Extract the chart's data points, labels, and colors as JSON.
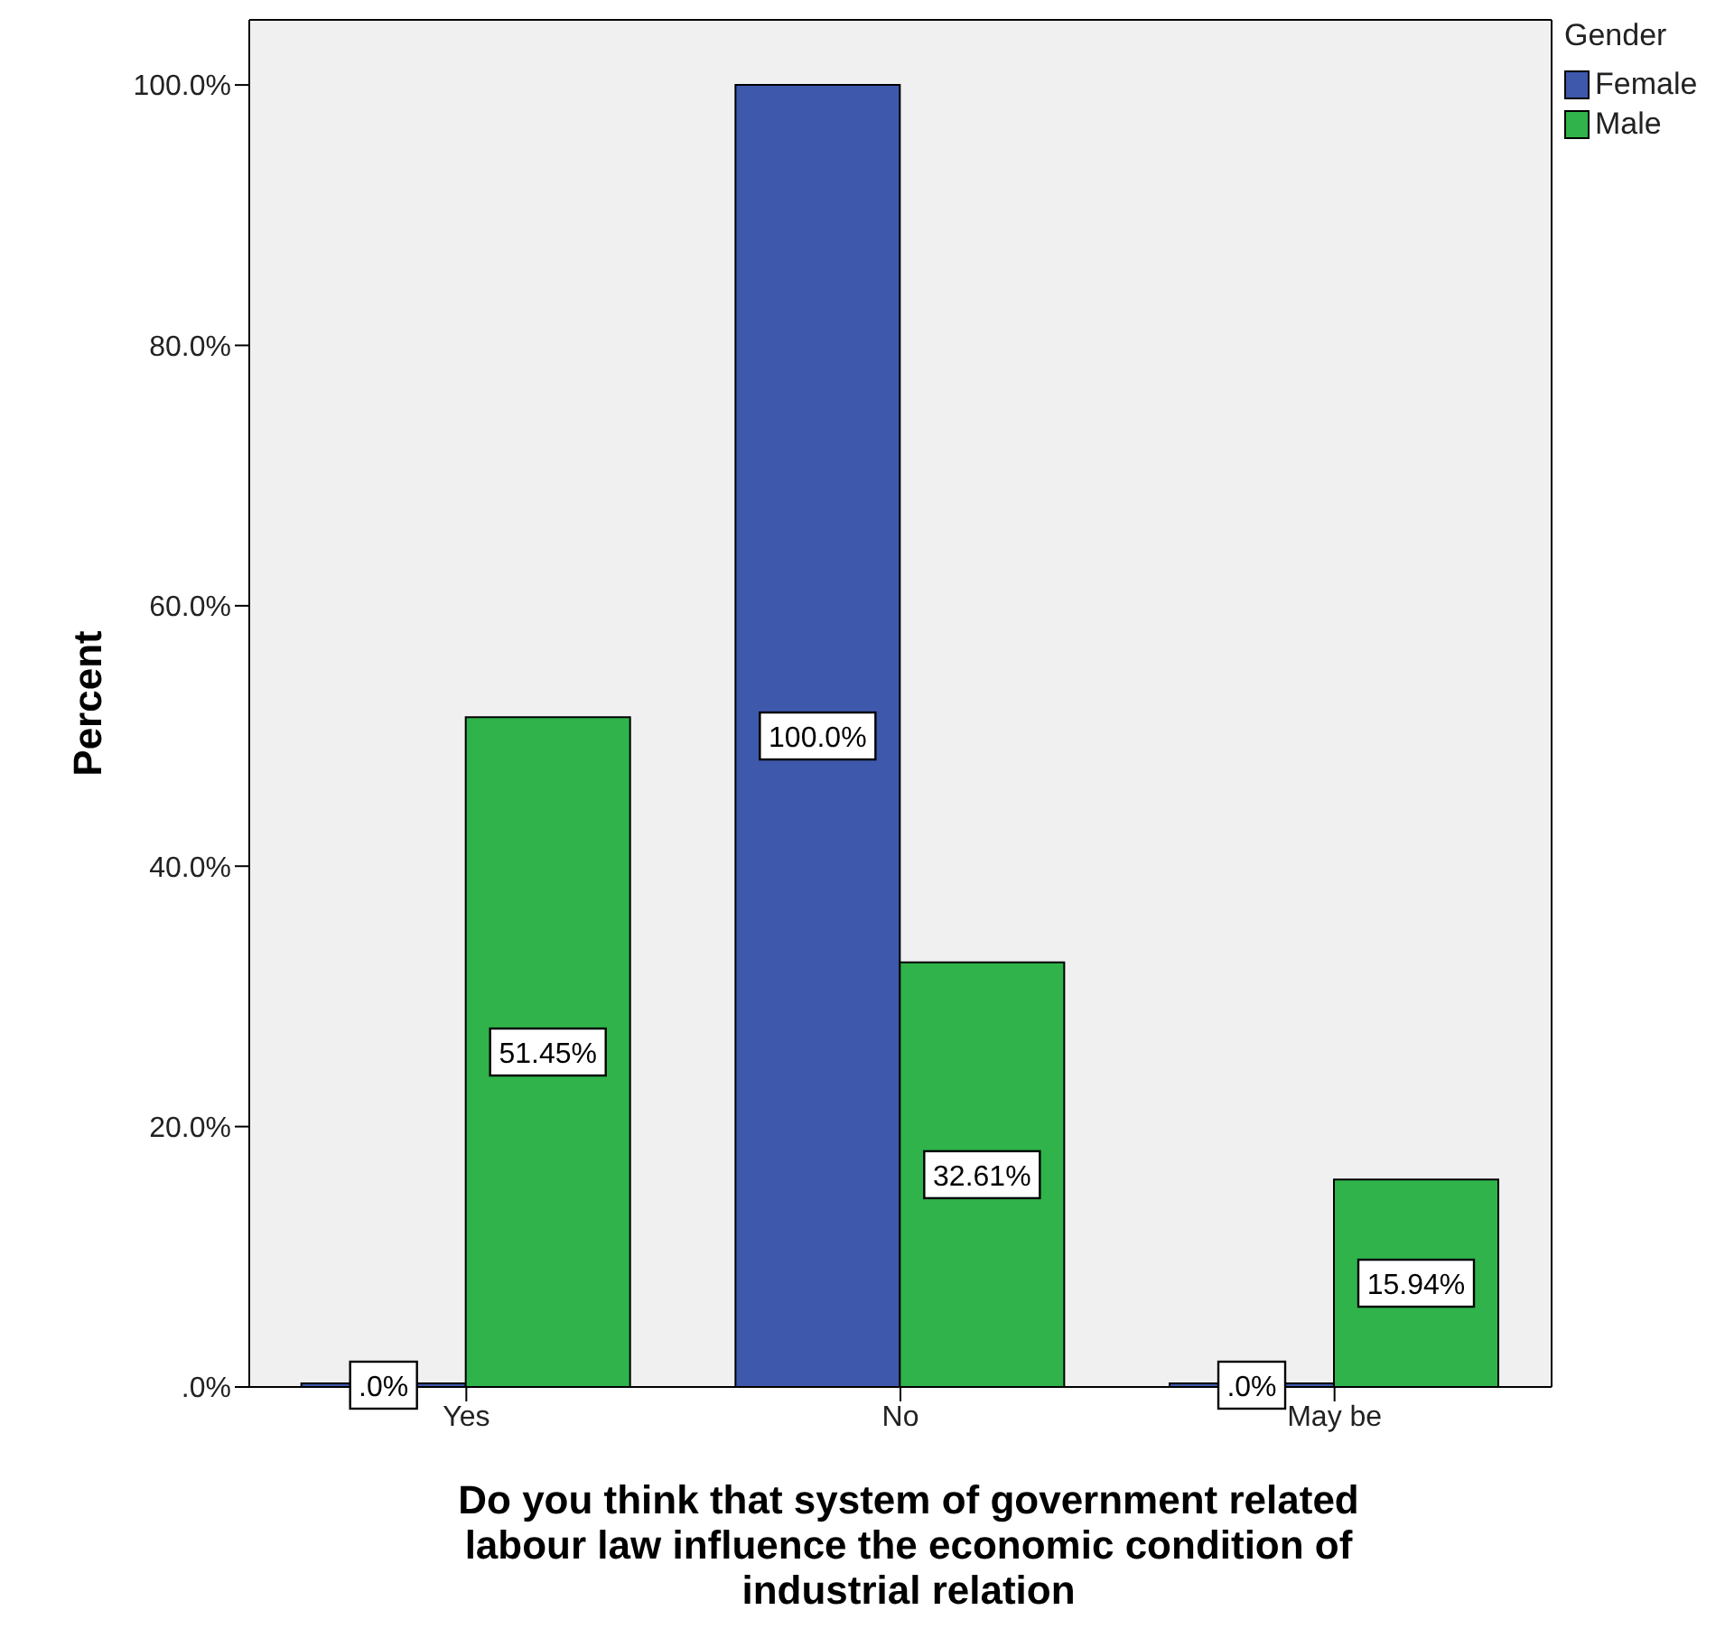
{
  "chart_data": {
    "type": "bar",
    "xlabel": "Do you think that system of government related labour law influence the economic condition of industrial relation",
    "ylabel": "Percent",
    "legend_title": "Gender",
    "legend": "top right",
    "grid": false,
    "categories": [
      "Yes",
      "No",
      "May be"
    ],
    "series": [
      {
        "name": "Female",
        "color": "#3e58ac",
        "values": [
          0,
          100,
          0
        ],
        "value_labels": [
          ".0%",
          "100.0%",
          ".0%"
        ]
      },
      {
        "name": "Male",
        "color": "#2fb34a",
        "values": [
          51.45,
          32.61,
          15.94
        ],
        "value_labels": [
          "51.45%",
          "32.61%",
          "15.94%"
        ]
      }
    ],
    "ylim": [
      0,
      105
    ],
    "yticks": [
      {
        "value": 0,
        "label": ".0%"
      },
      {
        "value": 20,
        "label": "20.0%"
      },
      {
        "value": 40,
        "label": "40.0%"
      },
      {
        "value": 60,
        "label": "60.0%"
      },
      {
        "value": 80,
        "label": "80.0%"
      },
      {
        "value": 100,
        "label": "100.0%"
      }
    ]
  }
}
